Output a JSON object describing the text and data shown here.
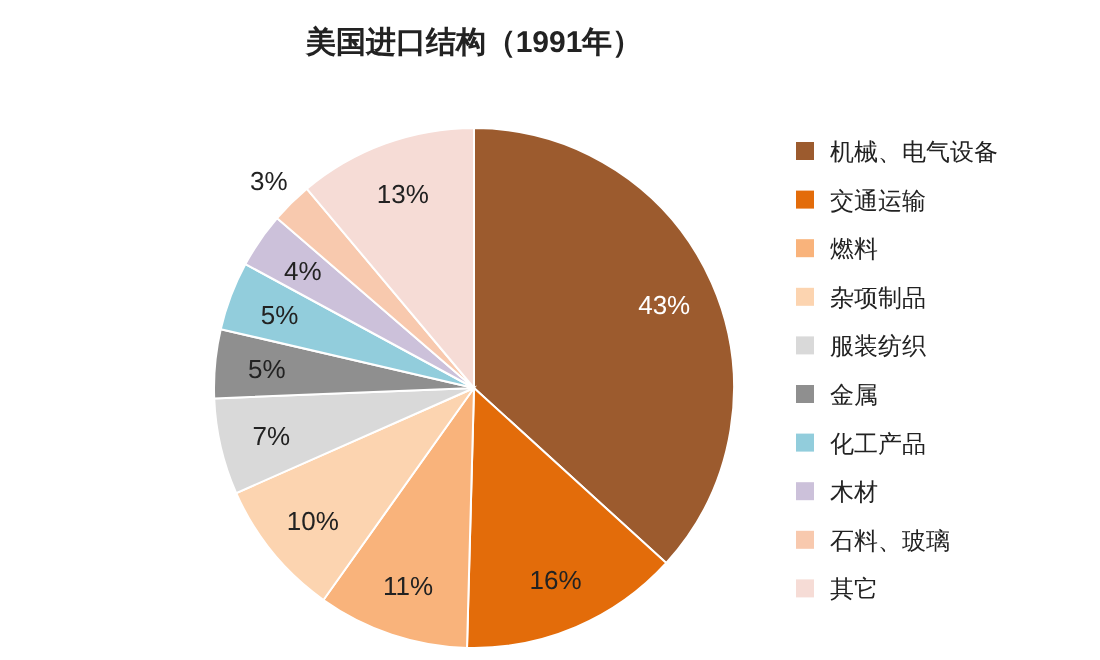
{
  "chart_data": {
    "type": "pie",
    "title": "美国进口结构（1991年）",
    "categories": [
      "机械、电气设备",
      "交通运输",
      "燃料",
      "杂项制品",
      "服装纺织",
      "金属",
      "化工产品",
      "木材",
      "石料、玻璃",
      "其它"
    ],
    "values": [
      43,
      16,
      11,
      10,
      7,
      5,
      5,
      4,
      3,
      13
    ],
    "colors": [
      "#9c5b2e",
      "#e36c0a",
      "#f9b37b",
      "#fcd4b0",
      "#d9d9d9",
      "#8f8f8f",
      "#92cddc",
      "#ccc1da",
      "#f8c9ae",
      "#f6dcd6"
    ],
    "value_labels": [
      "43%",
      "16%",
      "11%",
      "10%",
      "7%",
      "5%",
      "5%",
      "4%",
      "3%",
      "13%"
    ],
    "legend": "right"
  }
}
